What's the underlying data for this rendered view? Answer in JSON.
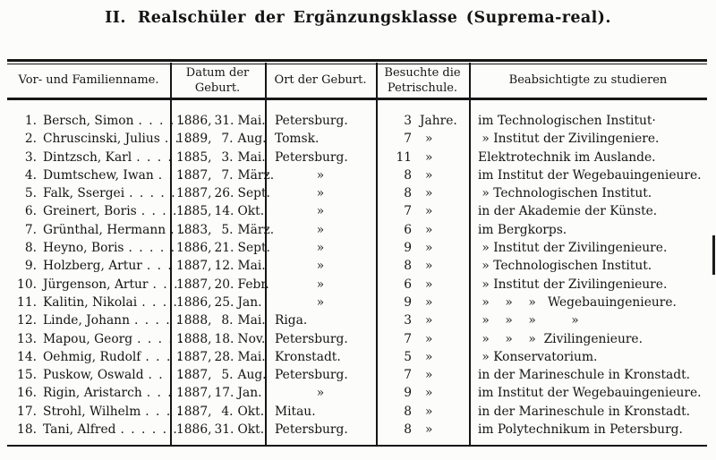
{
  "title": {
    "numeral": "II.",
    "text": "Realschüler der Ergänzungsklasse (Suprema-real)."
  },
  "colors": {
    "ink": "#161616",
    "paper": "#fcfcfb"
  },
  "table": {
    "headers": {
      "name": "Vor- und Familienname.",
      "birth_date": "Datum der\nGeburt.",
      "birth_place": "Ort der Geburt.",
      "school": "Besuchte die\nPetrischule.",
      "study": "Beabsichtigte zu studieren"
    },
    "rows": [
      {
        "num": "1.",
        "name": "Bersch, Simon",
        "dots": ". . . . .",
        "year": "1886,",
        "day": "31.",
        "month": "Mai.",
        "place": "Petersburg.",
        "years": "3",
        "years_unit": "Jahre.",
        "study": "im Technologischen Institut·"
      },
      {
        "num": "2.",
        "name": "Chruscinski, Julius",
        "dots": ". . .",
        "year": "1889,",
        "day": "7.",
        "month": "Aug.",
        "place": "Tomsk.",
        "years": "7",
        "years_unit": "»",
        "study": " » Institut der Zivilingeniere."
      },
      {
        "num": "3.",
        "name": "Dintzsch, Karl",
        "dots": ". . . . .",
        "year": "1885,",
        "day": "3.",
        "month": "Mai.",
        "place": "Petersburg.",
        "years": "11",
        "years_unit": "»",
        "study": "Elektrotechnik im Auslande."
      },
      {
        "num": "4.",
        "name": "Dumtschew, Iwan",
        "dots": ". . .",
        "year": "1887,",
        "day": "7.",
        "month": "März.",
        "place": "»",
        "years": "8",
        "years_unit": "»",
        "study": "im Institut der Wegebauingenieure."
      },
      {
        "num": "5.",
        "name": "Falk, Ssergei",
        "dots": ". . . . .",
        "year": "1887,",
        "day": "26.",
        "month": "Sept.",
        "place": "»",
        "years": "8",
        "years_unit": "»",
        "study": " » Technologischen Institut."
      },
      {
        "num": "6.",
        "name": "Greinert, Boris",
        "dots": ". . . . .",
        "year": "1885,",
        "day": "14.",
        "month": "Okt.",
        "place": "»",
        "years": "7",
        "years_unit": "»",
        "study": "in der Akademie der Künste."
      },
      {
        "num": "7.",
        "name": "Grünthal, Hermann",
        "dots": ". .",
        "year": "1883,",
        "day": "5.",
        "month": "März.",
        "place": "»",
        "years": "6",
        "years_unit": "»",
        "study": "im Bergkorps."
      },
      {
        "num": "8.",
        "name": "Heyno, Boris",
        "dots": ". . . . .",
        "year": "1886,",
        "day": "21.",
        "month": "Sept.",
        "place": "»",
        "years": "9",
        "years_unit": "»",
        "study": " » Institut der Zivilingenieure."
      },
      {
        "num": "9.",
        "name": "Holzberg, Artur",
        "dots": ". . .",
        "year": "1887,",
        "day": "12.",
        "month": "Mai.",
        "place": "»",
        "years": "8",
        "years_unit": "»",
        "study": " » Technologischen Institut."
      },
      {
        "num": "10.",
        "name": "Jürgenson, Artur",
        "dots": ". . .",
        "year": "1887,",
        "day": "20.",
        "month": "Febr.",
        "place": "»",
        "years": "6",
        "years_unit": "»",
        "study": " » Institut der Zivilingenieure."
      },
      {
        "num": "11.",
        "name": "Kalitin, Nikolai",
        "dots": ". . . .",
        "year": "1886,",
        "day": "25.",
        "month": "Jan.",
        "place": "»",
        "years": "9",
        "years_unit": "»",
        "study": " »    »    »   Wegebauingenieure."
      },
      {
        "num": "12.",
        "name": "Linde, Johann",
        "dots": ". . . . .",
        "year": "1888,",
        "day": "8.",
        "month": "Mai.",
        "place": "Riga.",
        "years": "3",
        "years_unit": "»",
        "study": " »    »    »         »"
      },
      {
        "num": "13.",
        "name": "Mapou, Georg",
        "dots": ". . . . .",
        "year": "1888,",
        "day": "18.",
        "month": "Nov.",
        "place": "Petersburg.",
        "years": "7",
        "years_unit": "»",
        "study": " »    »    »  Zivilingenieure."
      },
      {
        "num": "14.",
        "name": "Oehmig, Rudolf",
        "dots": ". . . .",
        "year": "1887,",
        "day": "28.",
        "month": "Mai.",
        "place": "Kronstadt.",
        "years": "5",
        "years_unit": "»",
        "study": " » Konservatorium."
      },
      {
        "num": "15.",
        "name": "Puskow, Oswald",
        "dots": ". . . .",
        "year": "1887,",
        "day": "5.",
        "month": "Aug.",
        "place": "Petersburg.",
        "years": "7",
        "years_unit": "»",
        "study": "in der Marineschule in Kronstadt."
      },
      {
        "num": "16.",
        "name": "Rigin, Aristarch",
        "dots": ". . . .",
        "year": "1887,",
        "day": "17.",
        "month": "Jan.",
        "place": "»",
        "years": "9",
        "years_unit": "»",
        "study": "im Institut der Wegebauingenieure."
      },
      {
        "num": "17.",
        "name": "Strohl, Wilhelm",
        "dots": ". . . .",
        "year": "1887,",
        "day": "4.",
        "month": "Okt.",
        "place": "Mitau.",
        "years": "8",
        "years_unit": "»",
        "study": "in der Marineschule in Kronstadt."
      },
      {
        "num": "18.",
        "name": "Tani, Alfred",
        "dots": ". . . . . .",
        "year": "1886,",
        "day": "31.",
        "month": "Okt.",
        "place": "Petersburg.",
        "years": "8",
        "years_unit": "»",
        "study": "im Polytechnikum in Petersburg."
      }
    ]
  }
}
